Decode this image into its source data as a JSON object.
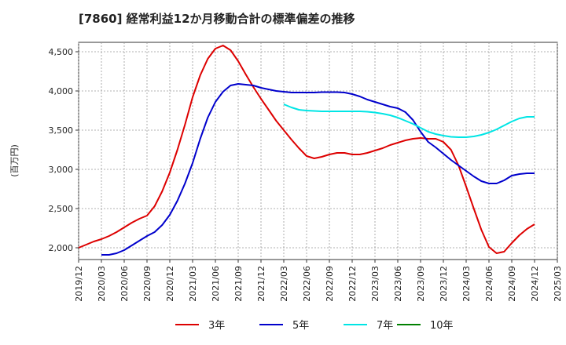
{
  "chart_data": {
    "type": "line",
    "title": "[7860]  経常利益12か月移動合計の標準偏差の推移",
    "ylabel": "(百万円)",
    "xlabel": "",
    "x_ticks": [
      "2019/12",
      "2020/03",
      "2020/06",
      "2020/09",
      "2020/12",
      "2021/03",
      "2021/06",
      "2021/09",
      "2021/12",
      "2022/03",
      "2022/06",
      "2022/09",
      "2022/12",
      "2023/03",
      "2023/06",
      "2023/09",
      "2023/12",
      "2024/03",
      "2024/06",
      "2024/09",
      "2024/12",
      "2025/03"
    ],
    "y_ticks": [
      2000,
      2500,
      3000,
      3500,
      4000,
      4500
    ],
    "y_tick_labels": [
      "2,000",
      "2,500",
      "3,000",
      "3,500",
      "4,000",
      "4,500"
    ],
    "ylim": [
      1850,
      4620
    ],
    "xlim": [
      "2019/12",
      "2025/03"
    ],
    "grid": true,
    "legend_position": "bottom",
    "series": [
      {
        "name": "3年",
        "color": "#dd0000",
        "x": [
          "2019/12",
          "2020/01",
          "2020/02",
          "2020/03",
          "2020/04",
          "2020/05",
          "2020/06",
          "2020/07",
          "2020/08",
          "2020/09",
          "2020/10",
          "2020/11",
          "2020/12",
          "2021/01",
          "2021/02",
          "2021/03",
          "2021/04",
          "2021/05",
          "2021/06",
          "2021/07",
          "2021/08",
          "2021/09",
          "2021/10",
          "2021/11",
          "2021/12",
          "2022/01",
          "2022/02",
          "2022/03",
          "2022/04",
          "2022/05",
          "2022/06",
          "2022/07",
          "2022/08",
          "2022/09",
          "2022/10",
          "2022/11",
          "2022/12",
          "2023/01",
          "2023/02",
          "2023/03",
          "2023/04",
          "2023/05",
          "2023/06",
          "2023/07",
          "2023/08",
          "2023/09",
          "2023/10",
          "2023/11",
          "2023/12",
          "2024/01",
          "2024/02",
          "2024/03",
          "2024/04",
          "2024/05",
          "2024/06",
          "2024/07",
          "2024/08",
          "2024/09",
          "2024/10",
          "2024/11",
          "2024/12"
        ],
        "values": [
          2000,
          2040,
          2080,
          2110,
          2150,
          2200,
          2260,
          2320,
          2370,
          2410,
          2530,
          2720,
          2960,
          3250,
          3570,
          3920,
          4200,
          4410,
          4540,
          4580,
          4520,
          4380,
          4210,
          4050,
          3900,
          3760,
          3620,
          3500,
          3380,
          3270,
          3170,
          3140,
          3160,
          3190,
          3210,
          3210,
          3190,
          3190,
          3210,
          3240,
          3270,
          3310,
          3340,
          3370,
          3390,
          3400,
          3390,
          3390,
          3350,
          3250,
          3050,
          2780,
          2500,
          2230,
          2010,
          1930,
          1950,
          2060,
          2160,
          2240,
          2300
        ]
      },
      {
        "name": "5年",
        "color": "#0000cc",
        "x": [
          "2020/03",
          "2020/04",
          "2020/05",
          "2020/06",
          "2020/07",
          "2020/08",
          "2020/09",
          "2020/10",
          "2020/11",
          "2020/12",
          "2021/01",
          "2021/02",
          "2021/03",
          "2021/04",
          "2021/05",
          "2021/06",
          "2021/07",
          "2021/08",
          "2021/09",
          "2021/10",
          "2021/11",
          "2021/12",
          "2022/01",
          "2022/02",
          "2022/03",
          "2022/04",
          "2022/05",
          "2022/06",
          "2022/07",
          "2022/08",
          "2022/09",
          "2022/10",
          "2022/11",
          "2022/12",
          "2023/01",
          "2023/02",
          "2023/03",
          "2023/04",
          "2023/05",
          "2023/06",
          "2023/07",
          "2023/08",
          "2023/09",
          "2023/10",
          "2023/11",
          "2023/12",
          "2024/01",
          "2024/02",
          "2024/03",
          "2024/04",
          "2024/05",
          "2024/06",
          "2024/07",
          "2024/08",
          "2024/09",
          "2024/10",
          "2024/11",
          "2024/12"
        ],
        "values": [
          1910,
          1910,
          1930,
          1970,
          2030,
          2090,
          2150,
          2200,
          2290,
          2420,
          2600,
          2820,
          3080,
          3390,
          3660,
          3860,
          3990,
          4070,
          4090,
          4080,
          4070,
          4040,
          4020,
          4000,
          3990,
          3980,
          3980,
          3980,
          3980,
          3985,
          3985,
          3985,
          3980,
          3960,
          3930,
          3890,
          3860,
          3830,
          3800,
          3780,
          3730,
          3630,
          3480,
          3350,
          3280,
          3200,
          3120,
          3050,
          2980,
          2910,
          2850,
          2820,
          2820,
          2860,
          2920,
          2940,
          2950,
          2950
        ]
      },
      {
        "name": "7年",
        "color": "#00e5e5",
        "x": [
          "2022/03",
          "2022/04",
          "2022/05",
          "2022/06",
          "2022/07",
          "2022/08",
          "2022/09",
          "2022/10",
          "2022/11",
          "2022/12",
          "2023/01",
          "2023/02",
          "2023/03",
          "2023/04",
          "2023/05",
          "2023/06",
          "2023/07",
          "2023/08",
          "2023/09",
          "2023/10",
          "2023/11",
          "2023/12",
          "2024/01",
          "2024/02",
          "2024/03",
          "2024/04",
          "2024/05",
          "2024/06",
          "2024/07",
          "2024/08",
          "2024/09",
          "2024/10",
          "2024/11",
          "2024/12"
        ],
        "values": [
          3830,
          3790,
          3760,
          3750,
          3745,
          3740,
          3740,
          3740,
          3740,
          3740,
          3740,
          3735,
          3725,
          3710,
          3690,
          3660,
          3620,
          3580,
          3530,
          3480,
          3450,
          3430,
          3415,
          3410,
          3410,
          3420,
          3440,
          3470,
          3510,
          3560,
          3610,
          3650,
          3670,
          3670
        ]
      },
      {
        "name": "10年",
        "color": "#008000",
        "x": [],
        "values": []
      }
    ]
  }
}
